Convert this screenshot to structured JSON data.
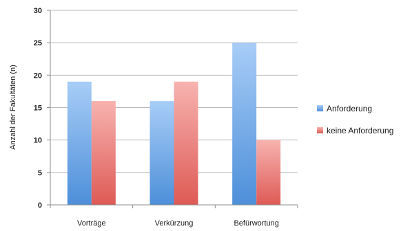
{
  "chart_data": {
    "type": "bar",
    "title": "",
    "xlabel": "",
    "ylabel": "Anzahl der Fakultäten (n)",
    "categories": [
      "Vorträge",
      "Verkürzung",
      "Befürwortung"
    ],
    "series": [
      {
        "name": "Anforderung",
        "values": [
          19,
          16,
          25
        ],
        "color": "#5b9bd5"
      },
      {
        "name": "keine Anforderung",
        "values": [
          16,
          19,
          10
        ],
        "color": "#e06666"
      }
    ],
    "ylim": [
      0,
      30
    ],
    "yticks": [
      0,
      5,
      10,
      15,
      20,
      25,
      30
    ],
    "grid": true,
    "legend": "right"
  }
}
